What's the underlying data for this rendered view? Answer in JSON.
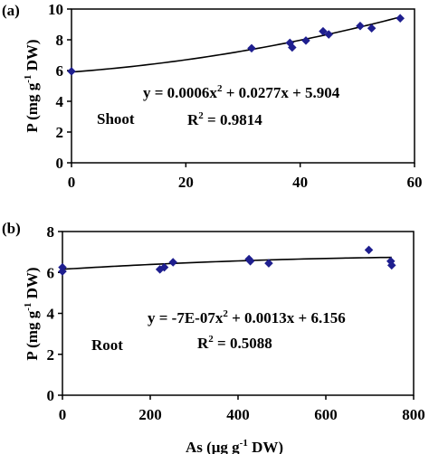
{
  "figure": {
    "xlabel_parts": [
      "As (μg g",
      "-1",
      " DW)"
    ]
  },
  "chart_data": [
    {
      "type": "scatter",
      "panel_label": "(a)",
      "series_label": "Shoot",
      "equation": {
        "text1": "y = 0.0006x",
        "exp1": "2",
        "text2": " + 0.0277x + 5.904",
        "r2_prefix": "R",
        "r2_exp": "2",
        "r2_value": " = 0.9814"
      },
      "ylabel_parts": [
        "P (mg g",
        "-1",
        " DW)"
      ],
      "xlim": [
        0,
        60
      ],
      "ylim": [
        0,
        10
      ],
      "xticks": [
        0,
        20,
        40,
        60
      ],
      "yticks": [
        0,
        2,
        4,
        6,
        8,
        10
      ],
      "grid": false,
      "marker_color": "#1f1f8f",
      "points": [
        [
          0,
          5.95
        ],
        [
          31.5,
          7.45
        ],
        [
          38.2,
          7.8
        ],
        [
          38.6,
          7.5
        ],
        [
          41.0,
          7.95
        ],
        [
          44.0,
          8.55
        ],
        [
          45.0,
          8.35
        ],
        [
          50.5,
          8.9
        ],
        [
          52.5,
          8.75
        ],
        [
          57.5,
          9.4
        ]
      ],
      "trend": {
        "a": 0.0006,
        "b": 0.0277,
        "c": 5.904
      }
    },
    {
      "type": "scatter",
      "panel_label": "(b)",
      "series_label": "Root",
      "equation": {
        "text1": "y = -7E-07x",
        "exp1": "2",
        "text2": " + 0.0013x + 6.156",
        "r2_prefix": "R",
        "r2_exp": "2",
        "r2_value": " = 0.5088"
      },
      "ylabel_parts": [
        "P (mg g",
        "-1",
        " DW)"
      ],
      "xlim": [
        0,
        800
      ],
      "ylim": [
        0,
        8
      ],
      "xticks": [
        0,
        200,
        400,
        600,
        800
      ],
      "yticks": [
        0,
        2,
        4,
        6,
        8
      ],
      "grid": false,
      "marker_color": "#1f1f8f",
      "points": [
        [
          0,
          6.25
        ],
        [
          0,
          6.05
        ],
        [
          222,
          6.15
        ],
        [
          232,
          6.25
        ],
        [
          252,
          6.5
        ],
        [
          425,
          6.65
        ],
        [
          428,
          6.55
        ],
        [
          470,
          6.45
        ],
        [
          698,
          7.1
        ],
        [
          748,
          6.55
        ],
        [
          750,
          6.35
        ]
      ],
      "trend": {
        "a": -7e-07,
        "b": 0.0013,
        "c": 6.156
      }
    }
  ]
}
